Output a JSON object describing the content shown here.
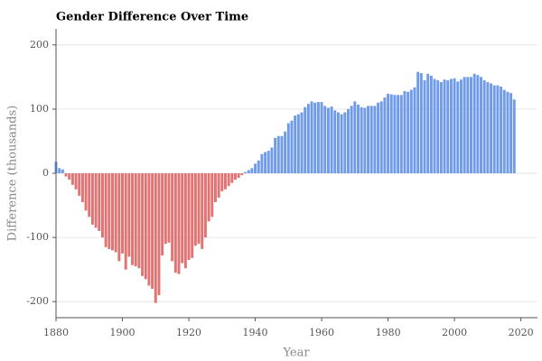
{
  "chart_data": {
    "type": "bar",
    "title": "Gender Difference Over Time",
    "xlabel": "Year",
    "ylabel": "Difference (thousands)",
    "x": [
      1880,
      1881,
      1882,
      1883,
      1884,
      1885,
      1886,
      1887,
      1888,
      1889,
      1890,
      1891,
      1892,
      1893,
      1894,
      1895,
      1896,
      1897,
      1898,
      1899,
      1900,
      1901,
      1902,
      1903,
      1904,
      1905,
      1906,
      1907,
      1908,
      1909,
      1910,
      1911,
      1912,
      1913,
      1914,
      1915,
      1916,
      1917,
      1918,
      1919,
      1920,
      1921,
      1922,
      1923,
      1924,
      1925,
      1926,
      1927,
      1928,
      1929,
      1930,
      1931,
      1932,
      1933,
      1934,
      1935,
      1936,
      1937,
      1938,
      1939,
      1940,
      1941,
      1942,
      1943,
      1944,
      1945,
      1946,
      1947,
      1948,
      1949,
      1950,
      1951,
      1952,
      1953,
      1954,
      1955,
      1956,
      1957,
      1958,
      1959,
      1960,
      1961,
      1962,
      1963,
      1964,
      1965,
      1966,
      1967,
      1968,
      1969,
      1970,
      1971,
      1972,
      1973,
      1974,
      1975,
      1976,
      1977,
      1978,
      1979,
      1980,
      1981,
      1982,
      1983,
      1984,
      1985,
      1986,
      1987,
      1988,
      1989,
      1990,
      1991,
      1992,
      1993,
      1994,
      1995,
      1996,
      1997,
      1998,
      1999,
      2000,
      2001,
      2002,
      2003,
      2004,
      2005,
      2006,
      2007,
      2008,
      2009,
      2010,
      2011,
      2012,
      2013,
      2014,
      2015,
      2016,
      2017,
      2018
    ],
    "values": [
      18,
      8,
      6,
      -5,
      -10,
      -18,
      -25,
      -35,
      -45,
      -58,
      -68,
      -80,
      -85,
      -90,
      -100,
      -115,
      -118,
      -120,
      -123,
      -137,
      -125,
      -150,
      -130,
      -143,
      -145,
      -148,
      -160,
      -165,
      -175,
      -180,
      -202,
      -190,
      -128,
      -110,
      -108,
      -137,
      -155,
      -157,
      -140,
      -148,
      -135,
      -132,
      -113,
      -110,
      -118,
      -100,
      -75,
      -68,
      -45,
      -38,
      -28,
      -25,
      -20,
      -15,
      -10,
      -7,
      -3,
      2,
      5,
      8,
      15,
      20,
      30,
      33,
      35,
      40,
      55,
      58,
      58,
      65,
      78,
      82,
      90,
      92,
      95,
      103,
      108,
      112,
      110,
      111,
      111,
      105,
      102,
      104,
      98,
      95,
      92,
      95,
      100,
      105,
      112,
      107,
      103,
      102,
      105,
      105,
      105,
      110,
      112,
      118,
      124,
      123,
      122,
      122,
      122,
      128,
      127,
      130,
      134,
      158,
      156,
      145,
      155,
      152,
      147,
      145,
      142,
      146,
      145,
      147,
      148,
      143,
      146,
      150,
      150,
      150,
      155,
      153,
      150,
      145,
      142,
      140,
      137,
      137,
      135,
      130,
      127,
      125,
      115
    ],
    "positive_color": "#6f9be8",
    "negative_color": "#e07373",
    "xlim": [
      1880,
      2025
    ],
    "xticks": [
      1880,
      1900,
      1920,
      1940,
      1960,
      1980,
      2000,
      2020
    ],
    "ylim": [
      -225,
      225
    ],
    "yticks": [
      -200,
      -100,
      0,
      100,
      200
    ],
    "grid": true
  }
}
